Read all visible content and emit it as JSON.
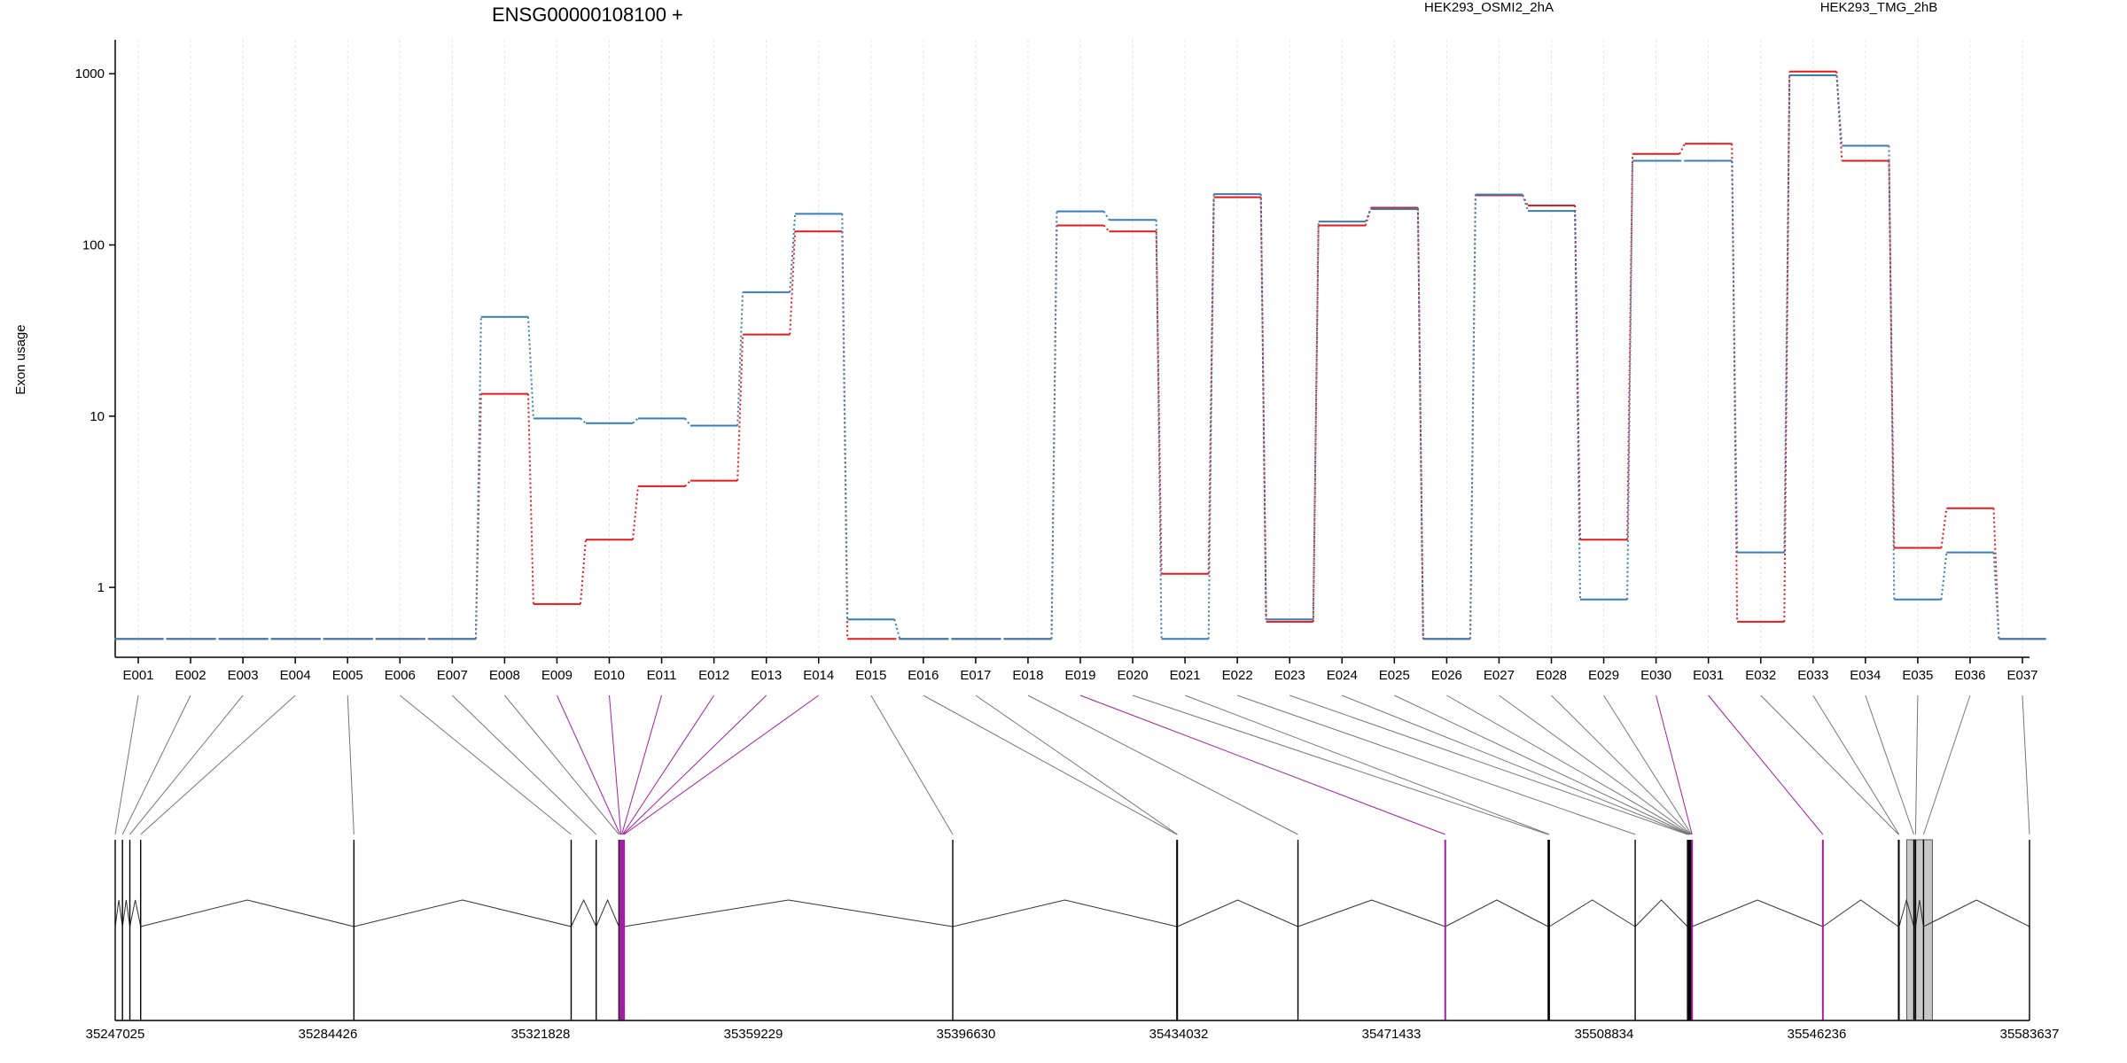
{
  "chart_data": {
    "type": "line",
    "title": "ENSG00000108100 +",
    "ylabel": "Exon usage",
    "xlabel": "",
    "y_scale": "log",
    "ylim": [
      0.4,
      1400
    ],
    "y_ticks": [
      1,
      10,
      100,
      1000
    ],
    "y_tick_labels": [
      "1",
      "10",
      "100",
      "1000"
    ],
    "grid": "vertical dotted lines at exon positions",
    "legend_position": "top-right",
    "categories": [
      "E001",
      "E002",
      "E003",
      "E004",
      "E005",
      "E006",
      "E007",
      "E008",
      "E009",
      "E010",
      "E011",
      "E012",
      "E013",
      "E014",
      "E015",
      "E016",
      "E017",
      "E018",
      "E019",
      "E020",
      "E021",
      "E022",
      "E023",
      "E024",
      "E025",
      "E026",
      "E027",
      "E028",
      "E029",
      "E030",
      "E031",
      "E032",
      "E033",
      "E034",
      "E035",
      "E036",
      "E037"
    ],
    "series": [
      {
        "name": "HEK293_OSMI2_2hA",
        "color": "#e41a1c",
        "values": [
          0.5,
          0.5,
          0.5,
          0.5,
          0.5,
          0.5,
          0.5,
          13.5,
          0.8,
          1.9,
          3.9,
          4.2,
          30,
          120,
          0.5,
          0.5,
          0.5,
          0.5,
          130,
          120,
          1.2,
          190,
          0.63,
          130,
          165,
          0.5,
          195,
          170,
          1.9,
          340,
          390,
          0.63,
          1030,
          310,
          1.7,
          2.9,
          0.5
        ]
      },
      {
        "name": "HEK293_TMG_2hB",
        "color": "#377eb8",
        "values": [
          0.5,
          0.5,
          0.5,
          0.5,
          0.5,
          0.5,
          0.5,
          38,
          9.7,
          9.1,
          9.7,
          8.8,
          53,
          152,
          0.65,
          0.5,
          0.5,
          0.5,
          157,
          140,
          0.5,
          198,
          0.65,
          137,
          162,
          0.5,
          197,
          158,
          0.85,
          310,
          310,
          1.6,
          980,
          380,
          0.85,
          1.6,
          0.5
        ]
      }
    ],
    "genomic_axis": {
      "range": [
        35247025,
        35583637
      ],
      "tick_labels": [
        "35247025",
        "35284426",
        "35321828",
        "35359229",
        "35396630",
        "35434032",
        "35471433",
        "35508834",
        "35546236",
        "35583637"
      ],
      "exon_positions": [
        35247025,
        35248300,
        35249600,
        35251500,
        35289000,
        35327200,
        35331600,
        35335600,
        35335800,
        35335950,
        35336100,
        35336250,
        35336350,
        35336500,
        35394300,
        35433700,
        35433800,
        35455000,
        35480900,
        35499000,
        35499200,
        35514300,
        35523500,
        35523700,
        35523800,
        35523900,
        35524000,
        35524100,
        35524200,
        35524300,
        35547300,
        35560600,
        35560700,
        35563300,
        35563600,
        35565000,
        35583637
      ],
      "highlighted_exons": [
        "E009",
        "E010",
        "E011",
        "E012",
        "E013",
        "E014",
        "E019",
        "E030",
        "E031"
      ],
      "shaded_exons": [
        "E035",
        "E036"
      ],
      "highlight_color": "#a020a0"
    }
  }
}
